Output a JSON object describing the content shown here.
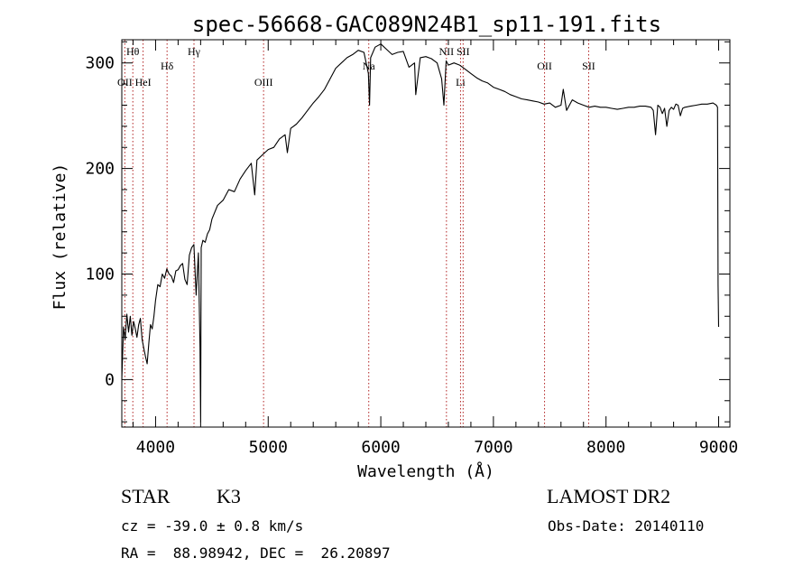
{
  "chart_data": {
    "type": "line",
    "title": "spec-56668-GAC089N24B1_sp11-191.fits",
    "xlabel": "Wavelength (Å)",
    "ylabel": "Flux (relative)",
    "xlim": [
      3700,
      9100
    ],
    "ylim": [
      -45,
      322
    ],
    "xticks": [
      4000,
      5000,
      6000,
      7000,
      8000,
      9000
    ],
    "yticks": [
      0,
      100,
      200,
      300
    ],
    "line_color": "#000000",
    "marker_color": "#b22222",
    "series": [
      {
        "x": [
          3700,
          3715,
          3730,
          3745,
          3760,
          3775,
          3790,
          3805,
          3820,
          3835,
          3850,
          3865,
          3880,
          3895,
          3910,
          3925,
          3940,
          3955,
          3970,
          3985,
          4000,
          4020,
          4040,
          4060,
          4080,
          4100,
          4120,
          4140,
          4160,
          4180,
          4200,
          4220,
          4240,
          4260,
          4280,
          4300,
          4320,
          4340,
          4360,
          4380,
          4395,
          4400,
          4405,
          4420,
          4440,
          4460,
          4480,
          4500,
          4550,
          4600,
          4650,
          4700,
          4750,
          4800,
          4850,
          4880,
          4900,
          4950,
          5000,
          5050,
          5100,
          5150,
          5170,
          5200,
          5250,
          5300,
          5350,
          5400,
          5450,
          5500,
          5550,
          5600,
          5650,
          5700,
          5750,
          5800,
          5850,
          5890,
          5900,
          5910,
          5950,
          6000,
          6050,
          6100,
          6150,
          6200,
          6250,
          6300,
          6310,
          6350,
          6400,
          6450,
          6500,
          6540,
          6560,
          6580,
          6600,
          6650,
          6700,
          6750,
          6800,
          6850,
          6900,
          6950,
          7000,
          7050,
          7100,
          7150,
          7200,
          7250,
          7300,
          7350,
          7400,
          7450,
          7500,
          7550,
          7600,
          7620,
          7650,
          7700,
          7750,
          7800,
          7850,
          7900,
          7950,
          8000,
          8050,
          8100,
          8150,
          8200,
          8250,
          8300,
          8350,
          8400,
          8420,
          8440,
          8460,
          8480,
          8500,
          8520,
          8540,
          8560,
          8580,
          8600,
          8620,
          8640,
          8660,
          8680,
          8700,
          8750,
          8800,
          8850,
          8900,
          8950,
          8980,
          8990,
          8995,
          9000
        ],
        "y": [
          0,
          50,
          38,
          62,
          45,
          60,
          42,
          55,
          48,
          40,
          52,
          58,
          38,
          30,
          22,
          15,
          35,
          52,
          48,
          60,
          75,
          90,
          88,
          100,
          96,
          105,
          100,
          98,
          92,
          103,
          104,
          108,
          110,
          95,
          90,
          118,
          125,
          128,
          80,
          120,
          30,
          -40,
          125,
          132,
          130,
          138,
          142,
          152,
          165,
          170,
          180,
          178,
          190,
          198,
          205,
          175,
          208,
          213,
          218,
          220,
          228,
          232,
          215,
          238,
          242,
          248,
          255,
          262,
          268,
          275,
          285,
          295,
          300,
          305,
          308,
          312,
          310,
          290,
          260,
          305,
          315,
          318,
          313,
          308,
          310,
          311,
          296,
          300,
          270,
          305,
          306,
          304,
          300,
          285,
          260,
          302,
          298,
          300,
          298,
          294,
          290,
          286,
          283,
          281,
          277,
          275,
          273,
          270,
          268,
          266,
          265,
          264,
          263,
          261,
          262,
          258,
          260,
          275,
          255,
          265,
          262,
          260,
          258,
          259,
          258,
          258,
          257,
          256,
          257,
          258,
          258,
          259,
          259,
          258,
          255,
          232,
          260,
          258,
          252,
          257,
          240,
          255,
          258,
          256,
          261,
          260,
          250,
          257,
          258,
          259,
          260,
          261,
          261,
          262,
          260,
          258,
          90,
          50
        ]
      }
    ],
    "line_markers": [
      {
        "label": "Hθ",
        "x": 3798,
        "row": 1
      },
      {
        "label": "OII",
        "x": 3727,
        "row": 3
      },
      {
        "label": "HeI",
        "x": 3889,
        "row": 3
      },
      {
        "label": "Hδ",
        "x": 4102,
        "row": 2
      },
      {
        "label": "Hγ",
        "x": 4341,
        "row": 1
      },
      {
        "label": "OIII",
        "x": 4959,
        "row": 3
      },
      {
        "label": "Na",
        "x": 5893,
        "row": 2
      },
      {
        "label": "NII",
        "x": 6583,
        "row": 1
      },
      {
        "label": "Li",
        "x": 6708,
        "row": 3
      },
      {
        "label": "SII",
        "x": 6731,
        "row": 1
      },
      {
        "label": "OII",
        "x": 7454,
        "row": 2
      },
      {
        "label": "SII",
        "x": 7846,
        "row": 2
      }
    ]
  },
  "info": {
    "object_class": "STAR",
    "subclass": "K3",
    "survey": "LAMOST DR2",
    "cz": "cz = -39.0 ± 0.8 km/s",
    "obs_date": "Obs-Date: 20140110",
    "coords": "RA =  88.98942, DEC =  26.20897"
  }
}
